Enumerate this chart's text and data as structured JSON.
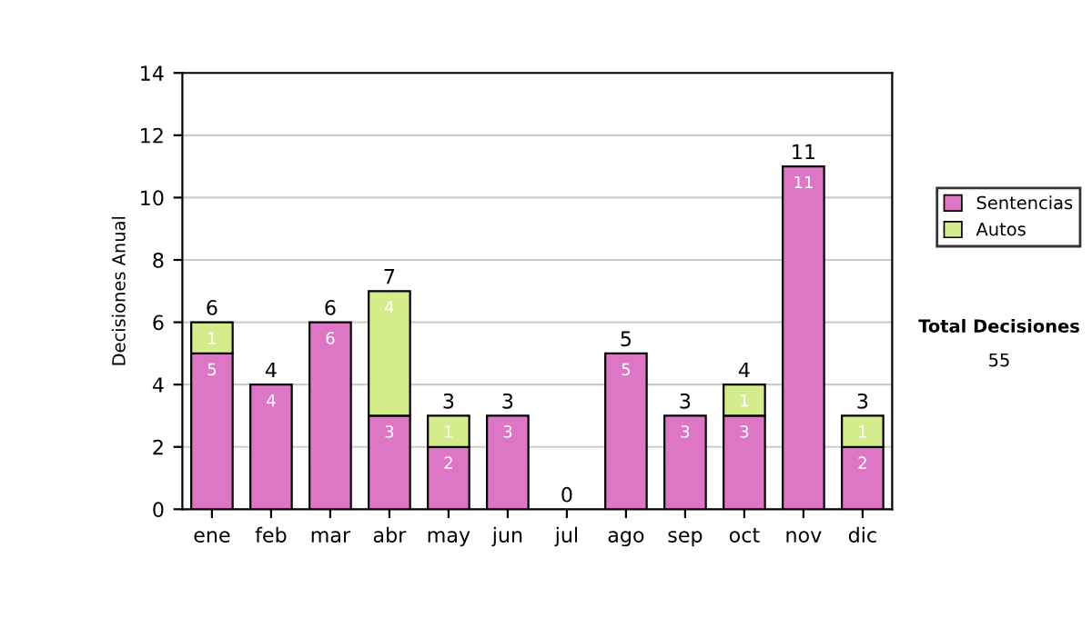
{
  "chart_data": {
    "type": "bar",
    "stacked": true,
    "ylabel": "Decisiones Anual",
    "categories": [
      "ene",
      "feb",
      "mar",
      "abr",
      "may",
      "jun",
      "jul",
      "ago",
      "sep",
      "oct",
      "nov",
      "dic"
    ],
    "series": [
      {
        "name": "Sentencias",
        "color": "#dd77c5",
        "values": [
          5,
          4,
          6,
          3,
          2,
          3,
          0,
          5,
          3,
          3,
          11,
          2
        ],
        "value_labels": [
          "5",
          "4",
          "6",
          "3",
          "2",
          "3",
          null,
          "5",
          "3",
          "3",
          "11",
          "2"
        ]
      },
      {
        "name": "Autos",
        "color": "#d4ec8c",
        "values": [
          1,
          0,
          0,
          4,
          1,
          0,
          0,
          0,
          0,
          1,
          0,
          1
        ],
        "value_labels": [
          "1",
          null,
          null,
          "4",
          "1",
          null,
          null,
          null,
          null,
          "1",
          null,
          "1"
        ]
      }
    ],
    "totals": [
      "6",
      "4",
      "6",
      "7",
      "3",
      "3",
      "0",
      "5",
      "3",
      "4",
      "11",
      "3"
    ],
    "ylim": [
      0,
      14
    ],
    "yticks": [
      0,
      2,
      4,
      6,
      8,
      10,
      12,
      14
    ],
    "grid": "y",
    "legend": "right",
    "annotations": [
      "Total Decisiones",
      "55"
    ]
  }
}
